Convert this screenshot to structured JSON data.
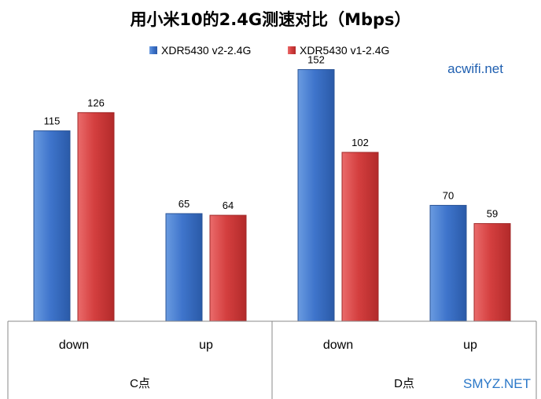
{
  "chart_data": {
    "type": "bar",
    "title": "用小米10的2.4G测速对比（Mbps）",
    "groups": [
      {
        "label": "C点",
        "categories": [
          "down",
          "up"
        ]
      },
      {
        "label": "D点",
        "categories": [
          "down",
          "up"
        ]
      }
    ],
    "categories": [
      "down",
      "up",
      "down",
      "up"
    ],
    "series": [
      {
        "name": "XDR5430 v2-2.4G",
        "color": "#3a6fc2",
        "values": [
          115,
          65,
          152,
          70
        ]
      },
      {
        "name": "XDR5430 v1-2.4G",
        "color": "#d03b3b",
        "values": [
          126,
          64,
          102,
          59
        ]
      }
    ],
    "ylim": [
      0,
      160
    ],
    "grid": false,
    "legend_position": "top-center"
  },
  "watermarks": {
    "top_right": "acwifi.net",
    "bottom_right": "SMYZ.NET"
  },
  "colors": {
    "watermark_top": "#1f5fb0",
    "watermark_bottom": "#2b78c8"
  }
}
